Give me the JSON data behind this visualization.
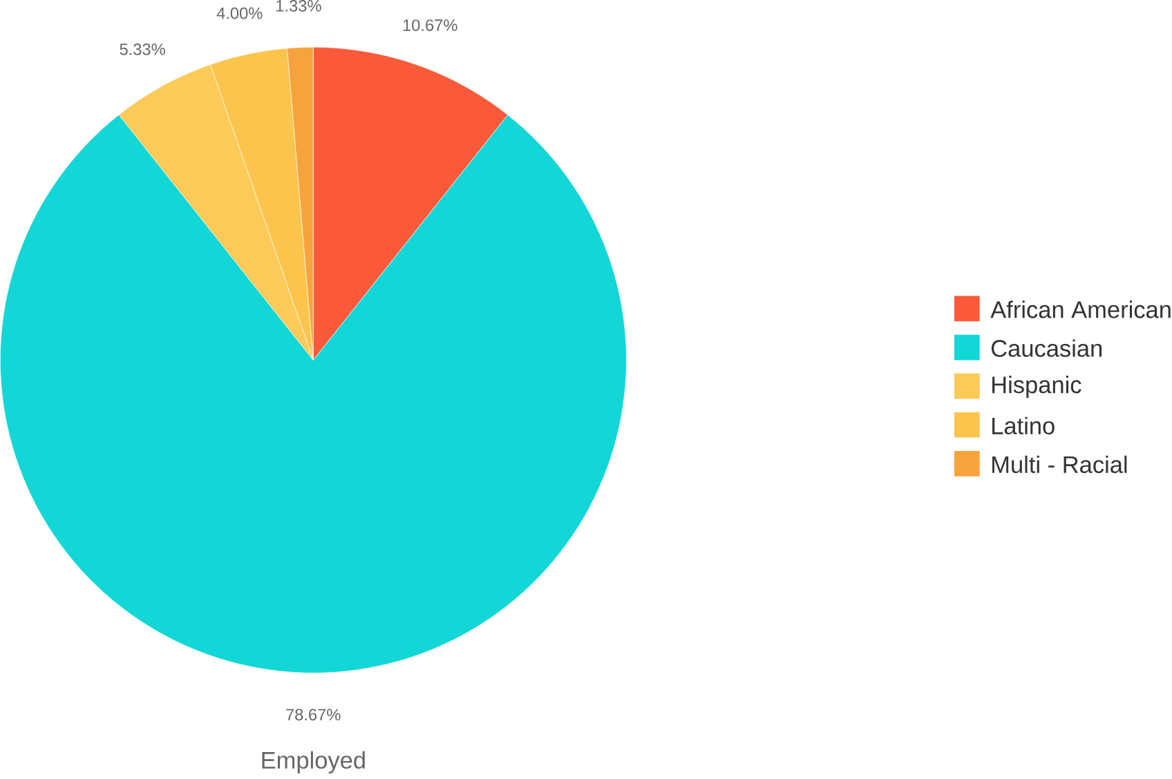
{
  "chart_data": {
    "type": "pie",
    "xlabel": "Employed",
    "categories": [
      "African American",
      "Caucasian",
      "Hispanic",
      "Latino",
      "Multi - Racial"
    ],
    "values": [
      10.67,
      78.67,
      5.33,
      4.0,
      1.33
    ],
    "value_labels": [
      "10.67%",
      "78.67%",
      "5.33%",
      "4.00%",
      "1.33%"
    ],
    "colors": [
      "#fb5a3a",
      "#13d6d6",
      "#fcca58",
      "#fbc44c",
      "#f6a33d"
    ],
    "legend": "right"
  }
}
